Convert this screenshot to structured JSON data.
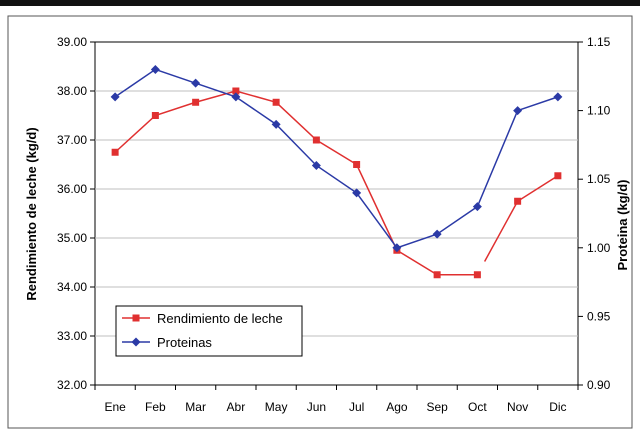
{
  "chart_data": {
    "type": "line",
    "categories": [
      "Ene",
      "Feb",
      "Mar",
      "Abr",
      "May",
      "Jun",
      "Jul",
      "Ago",
      "Sep",
      "Oct",
      "Nov",
      "Dic"
    ],
    "series": [
      {
        "name": "Rendimiento de leche",
        "axis": "left",
        "color": "#e03030",
        "marker": "square",
        "values": [
          36.75,
          37.5,
          37.77,
          38.0,
          37.77,
          37.0,
          36.5,
          34.75,
          34.25,
          34.25,
          35.75,
          36.27
        ],
        "gap_after_index": 9
      },
      {
        "name": "Proteinas",
        "axis": "right",
        "color": "#2b3aa6",
        "marker": "diamond",
        "values": [
          1.11,
          1.13,
          1.12,
          1.11,
          1.09,
          1.06,
          1.04,
          1.0,
          1.01,
          1.03,
          1.1,
          1.11
        ]
      }
    ],
    "y_left": {
      "label": "Rendimiento de leche (kg/d)",
      "min": 32.0,
      "max": 39.0,
      "ticks": [
        "32.00",
        "33.00",
        "34.00",
        "35.00",
        "36.00",
        "37.00",
        "38.00",
        "39.00"
      ]
    },
    "y_right": {
      "label": "Proteina (kg/d)",
      "min": 0.9,
      "max": 1.15,
      "ticks": [
        "0.90",
        "0.95",
        "1.00",
        "1.05",
        "1.10",
        "1.15"
      ]
    },
    "legend": {
      "position": "lower-left",
      "entries": [
        "Rendimiento de leche",
        "Proteinas"
      ]
    },
    "grid": true
  },
  "colors": {
    "frame": "#000000",
    "grid": "#bfbfbf",
    "text": "#000000"
  }
}
